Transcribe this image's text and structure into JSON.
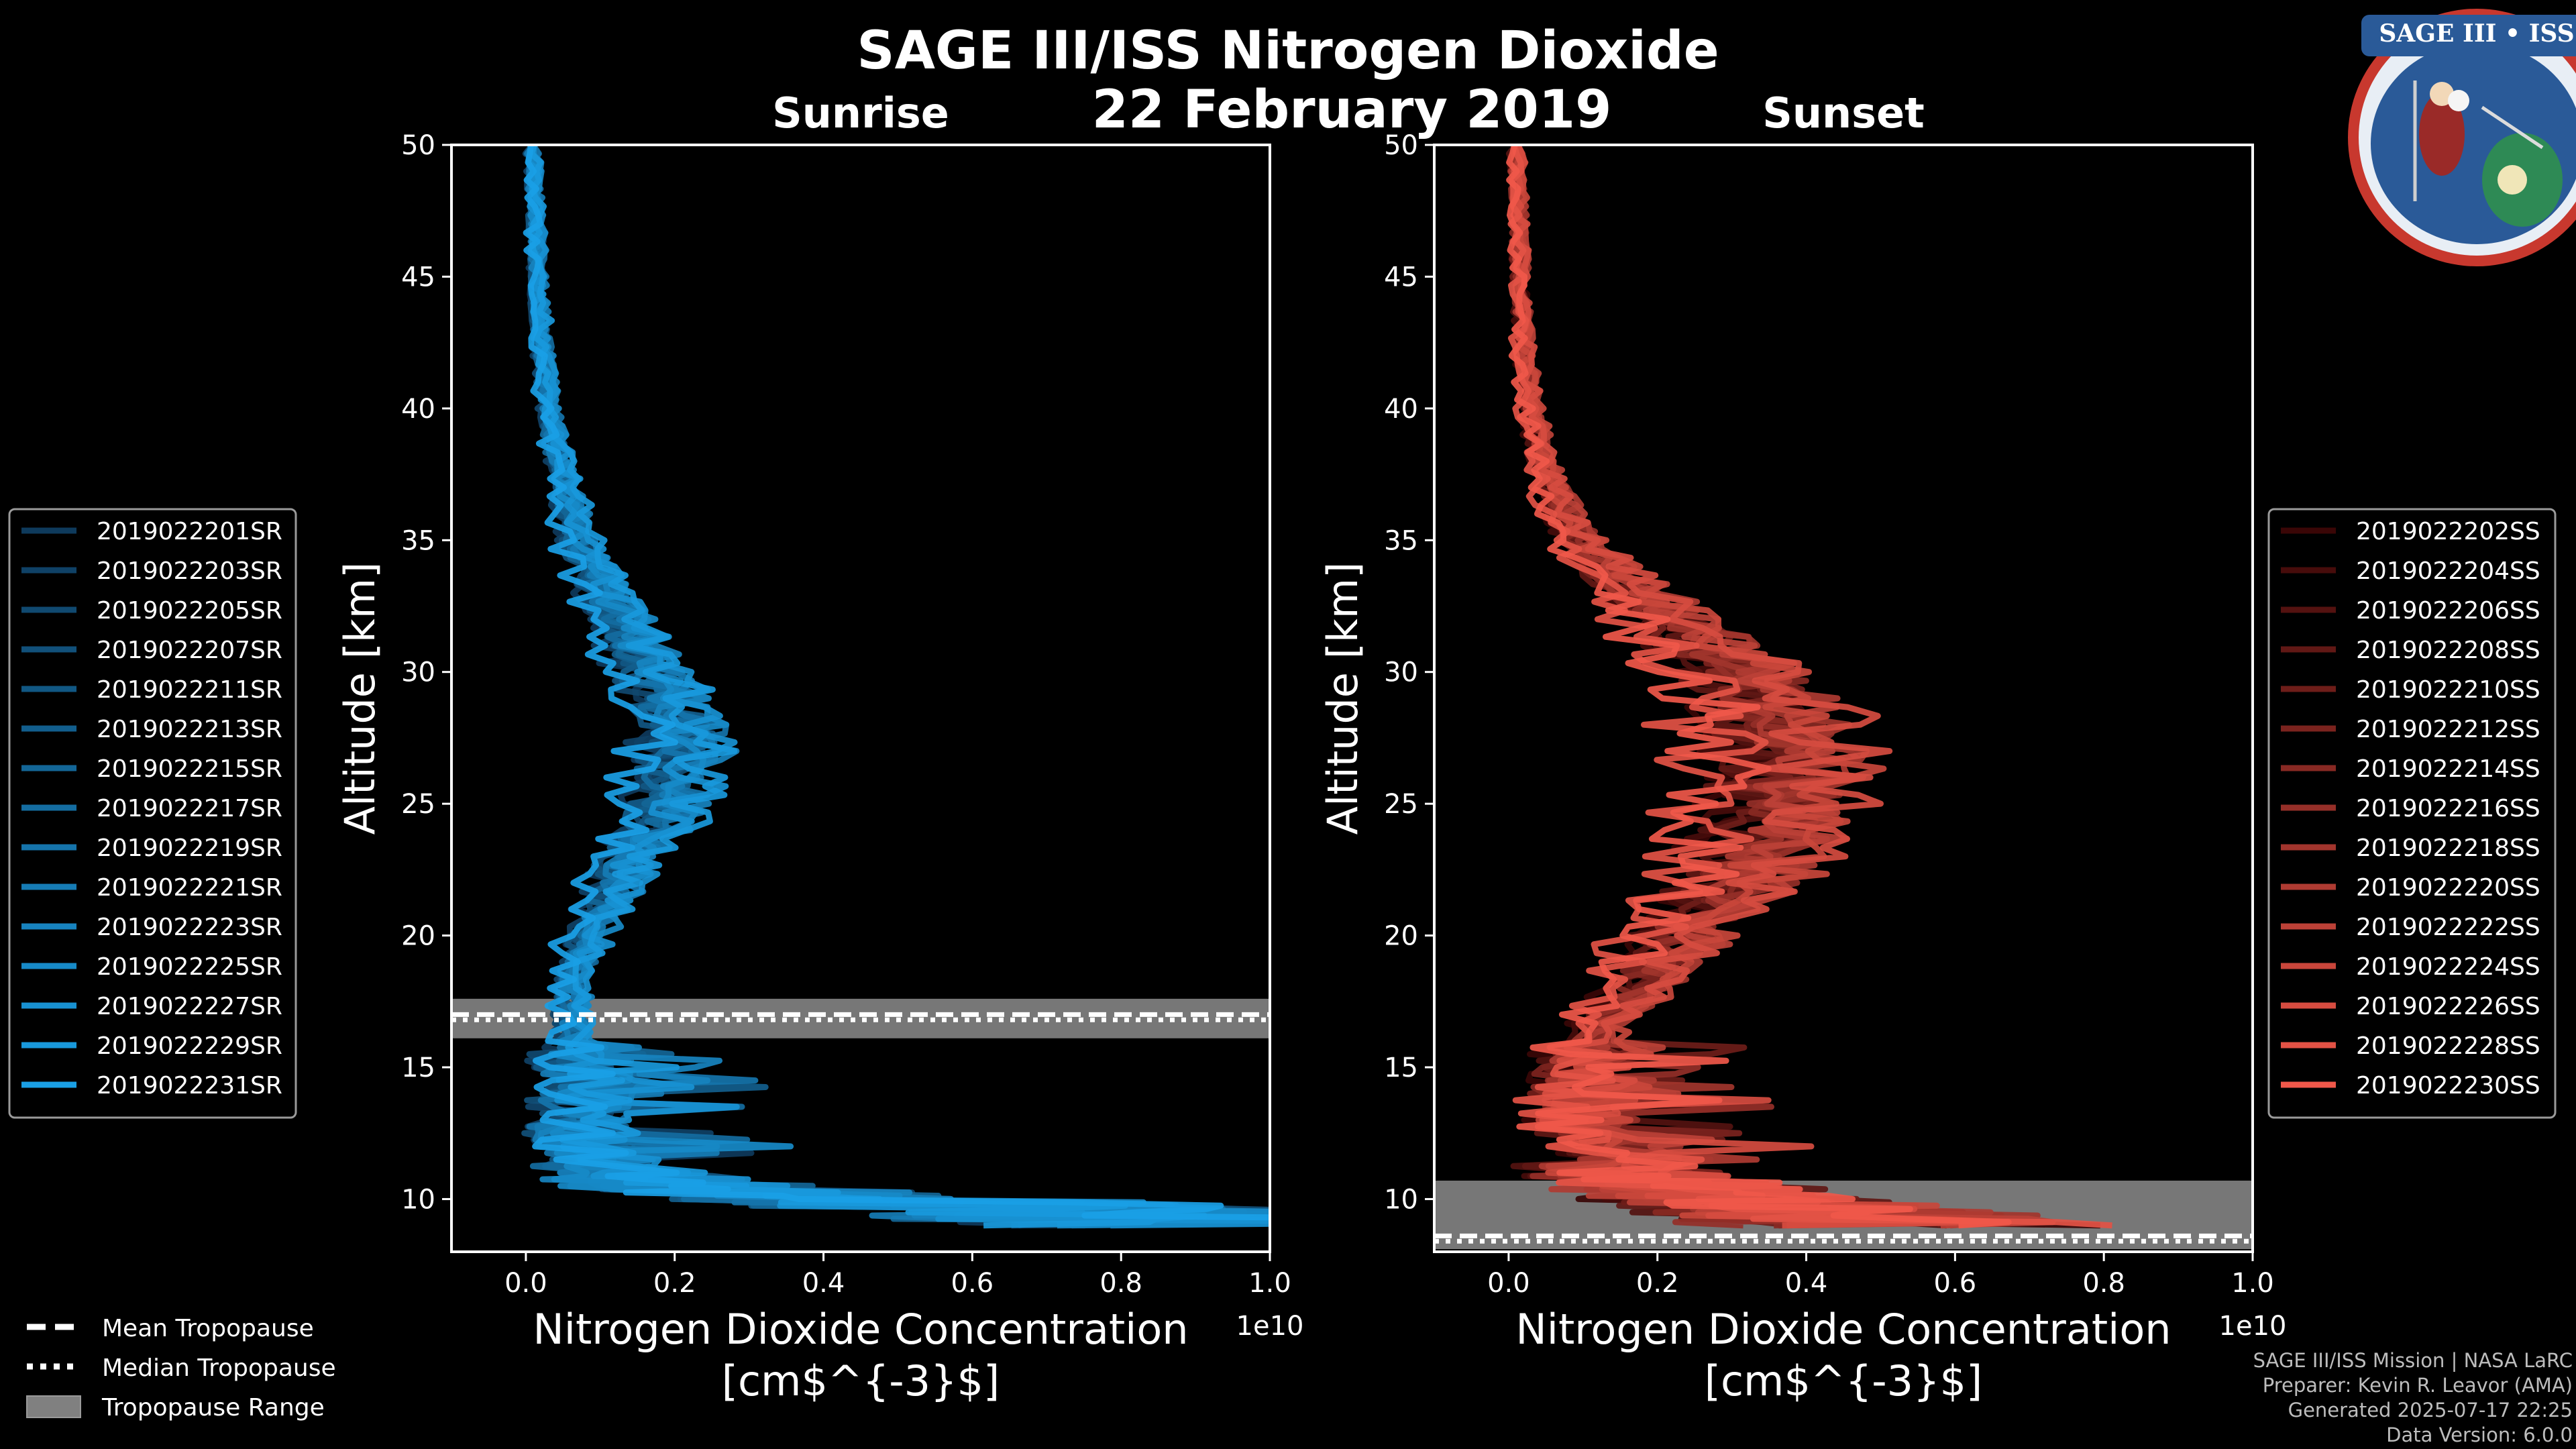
{
  "page": {
    "title": "SAGE III/ISS Nitrogen Dioxide",
    "date": "22 February 2019",
    "credits": [
      "SAGE III/ISS Mission | NASA LaRC",
      "Preparer: Kevin R. Leavor (AMA)",
      "Generated 2025-07-17 22:25",
      "Data Version: 6.0.0"
    ],
    "badge": {
      "text": "SAGE III • ISS",
      "icon": "sage-iii-iss-mission-patch"
    }
  },
  "tropopause_legend": {
    "mean": "Mean Tropopause",
    "median": "Median Tropopause",
    "range": "Tropopause Range"
  },
  "chart_data": [
    {
      "type": "line",
      "title": "Sunrise",
      "xlabel": "Nitrogen Dioxide Concentration",
      "xunit": "[cm$^{-3}$]",
      "xscale_label": "1e10",
      "ylabel": "Altitude [km]",
      "xlim": [
        -1000000000.0,
        10000000000.0
      ],
      "ylim": [
        8,
        50
      ],
      "xticks": [
        0,
        2000000000.0,
        4000000000.0,
        6000000000.0,
        8000000000.0,
        10000000000.0
      ],
      "xticklabels": [
        "0.0",
        "0.2",
        "0.4",
        "0.6",
        "0.8",
        "1.0"
      ],
      "yticks": [
        10,
        15,
        20,
        25,
        30,
        35,
        40,
        45,
        50
      ],
      "yticklabels": [
        "10",
        "15",
        "20",
        "25",
        "30",
        "35",
        "40",
        "45",
        "50"
      ],
      "grid": false,
      "legend_position": "left",
      "colors": {
        "from": "#0e3a5c",
        "to": "#1aa0e6"
      },
      "tropopause": {
        "mean": 17.0,
        "median": 16.8,
        "range": [
          16.1,
          17.6
        ]
      },
      "altitudes": [
        9,
        9.5,
        10,
        10.5,
        11,
        12,
        13,
        14,
        15,
        16,
        17,
        18,
        19,
        20,
        21,
        22,
        23,
        24,
        25,
        26,
        27,
        28,
        29,
        30,
        31,
        32,
        33,
        34,
        35,
        36,
        37,
        38,
        39,
        40,
        41,
        42,
        43,
        44,
        45,
        46,
        47,
        48,
        49,
        50
      ],
      "mean_profile": [
        9800000000.0,
        8000000000.0,
        4000000000.0,
        2000000000.0,
        1200000000.0,
        600000000.0,
        500000000.0,
        600000000.0,
        600000000.0,
        600000000.0,
        600000000.0,
        600000000.0,
        700000000.0,
        800000000.0,
        1000000000.0,
        1200000000.0,
        1300000000.0,
        1600000000.0,
        1800000000.0,
        1900000000.0,
        2000000000.0,
        2000000000.0,
        1800000000.0,
        1600000000.0,
        1400000000.0,
        1200000000.0,
        1000000000.0,
        850000000.0,
        700000000.0,
        600000000.0,
        500000000.0,
        420000000.0,
        350000000.0,
        300000000.0,
        250000000.0,
        220000000.0,
        200000000.0,
        180000000.0,
        160000000.0,
        150000000.0,
        140000000.0,
        120000000.0,
        100000000.0,
        90000000.0
      ],
      "series": [
        {
          "name": "2019022201SR"
        },
        {
          "name": "2019022203SR"
        },
        {
          "name": "2019022205SR"
        },
        {
          "name": "2019022207SR"
        },
        {
          "name": "2019022211SR"
        },
        {
          "name": "2019022213SR"
        },
        {
          "name": "2019022215SR"
        },
        {
          "name": "2019022217SR"
        },
        {
          "name": "2019022219SR"
        },
        {
          "name": "2019022221SR"
        },
        {
          "name": "2019022223SR"
        },
        {
          "name": "2019022225SR"
        },
        {
          "name": "2019022227SR"
        },
        {
          "name": "2019022229SR"
        },
        {
          "name": "2019022231SR"
        }
      ]
    },
    {
      "type": "line",
      "title": "Sunset",
      "xlabel": "Nitrogen Dioxide Concentration",
      "xunit": "[cm$^{-3}$]",
      "xscale_label": "1e10",
      "ylabel": "Altitude [km]",
      "xlim": [
        -1000000000.0,
        10000000000.0
      ],
      "ylim": [
        8,
        50
      ],
      "xticks": [
        0,
        2000000000.0,
        4000000000.0,
        6000000000.0,
        8000000000.0,
        10000000000.0
      ],
      "xticklabels": [
        "0.0",
        "0.2",
        "0.4",
        "0.6",
        "0.8",
        "1.0"
      ],
      "yticks": [
        10,
        15,
        20,
        25,
        30,
        35,
        40,
        45,
        50
      ],
      "yticklabels": [
        "10",
        "15",
        "20",
        "25",
        "30",
        "35",
        "40",
        "45",
        "50"
      ],
      "grid": false,
      "legend_position": "right",
      "colors": {
        "from": "#3a0606",
        "to": "#f0584a"
      },
      "tropopause": {
        "mean": 8.6,
        "median": 8.4,
        "range": [
          8.1,
          10.7
        ]
      },
      "altitudes": [
        9,
        9.5,
        10,
        10.5,
        11,
        12,
        13,
        14,
        15,
        16,
        17,
        18,
        19,
        20,
        21,
        22,
        23,
        24,
        25,
        26,
        27,
        28,
        29,
        30,
        31,
        32,
        33,
        34,
        35,
        36,
        37,
        38,
        39,
        40,
        41,
        42,
        43,
        44,
        45,
        46,
        47,
        48,
        49,
        50
      ],
      "mean_profile": [
        5000000000.0,
        4000000000.0,
        3000000000.0,
        2000000000.0,
        1500000000.0,
        1000000000.0,
        800000000.0,
        800000000.0,
        800000000.0,
        1000000000.0,
        1300000000.0,
        1600000000.0,
        1900000000.0,
        2200000000.0,
        2600000000.0,
        2900000000.0,
        3100000000.0,
        3300000000.0,
        3400000000.0,
        3450000000.0,
        3500000000.0,
        3400000000.0,
        3200000000.0,
        2900000000.0,
        2500000000.0,
        2100000000.0,
        1600000000.0,
        1200000000.0,
        900000000.0,
        700000000.0,
        550000000.0,
        450000000.0,
        350000000.0,
        300000000.0,
        250000000.0,
        200000000.0,
        180000000.0,
        160000000.0,
        150000000.0,
        140000000.0,
        130000000.0,
        120000000.0,
        110000000.0,
        100000000.0
      ],
      "series": [
        {
          "name": "2019022202SS"
        },
        {
          "name": "2019022204SS"
        },
        {
          "name": "2019022206SS"
        },
        {
          "name": "2019022208SS"
        },
        {
          "name": "2019022210SS"
        },
        {
          "name": "2019022212SS"
        },
        {
          "name": "2019022214SS"
        },
        {
          "name": "2019022216SS"
        },
        {
          "name": "2019022218SS"
        },
        {
          "name": "2019022220SS"
        },
        {
          "name": "2019022222SS"
        },
        {
          "name": "2019022224SS"
        },
        {
          "name": "2019022226SS"
        },
        {
          "name": "2019022228SS"
        },
        {
          "name": "2019022230SS"
        }
      ]
    }
  ]
}
